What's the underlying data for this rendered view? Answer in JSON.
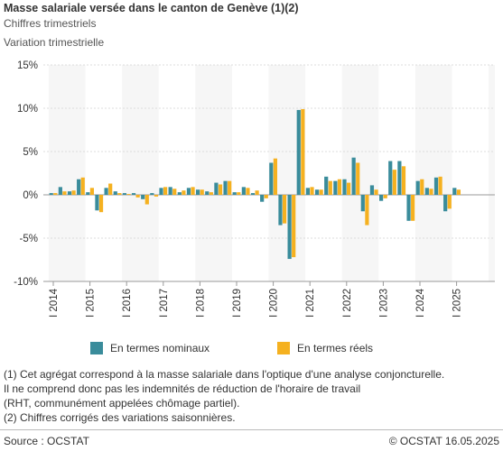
{
  "header": {
    "title": "Masse salariale versée dans le canton de Genève (1)(2)",
    "subtitle": "Chiffres trimestriels",
    "measure": "Variation trimestrielle"
  },
  "legend": [
    {
      "label": "En termes nominaux",
      "color": "#3a8c9b"
    },
    {
      "label": "En termes réels",
      "color": "#f5b120"
    }
  ],
  "notes": [
    "(1) Cet agrégat correspond à la masse salariale dans l'optique d'une analyse conjoncturelle.",
    "Il ne comprend donc pas les indemnités de réduction de l'horaire de travail",
    "(RHT, communément appelées chômage partiel).",
    "(2) Chiffres corrigés des variations saisonnières."
  ],
  "footer": {
    "source": "Source : OCSTAT",
    "copyright": "© OCSTAT 16.05.2025"
  },
  "chart_data": {
    "type": "bar",
    "y_ticks": [
      "15%",
      "10%",
      "5%",
      "0%",
      "-5%",
      "-10%"
    ],
    "ylim": [
      -10,
      15
    ],
    "y_tick_values": [
      15,
      10,
      5,
      0,
      -5,
      -10
    ],
    "year_labels": [
      "I 2014",
      "I 2015",
      "I 2016",
      "I 2017",
      "I 2018",
      "I 2019",
      "I 2020",
      "I 2021",
      "I 2022",
      "I 2023",
      "I 2024",
      "I 2025"
    ],
    "categories": [
      "I 2014",
      "II 2014",
      "III 2014",
      "IV 2014",
      "I 2015",
      "II 2015",
      "III 2015",
      "IV 2015",
      "I 2016",
      "II 2016",
      "III 2016",
      "IV 2016",
      "I 2017",
      "II 2017",
      "III 2017",
      "IV 2017",
      "I 2018",
      "II 2018",
      "III 2018",
      "IV 2018",
      "I 2019",
      "II 2019",
      "III 2019",
      "IV 2019",
      "I 2020",
      "II 2020",
      "III 2020",
      "IV 2020",
      "I 2021",
      "II 2021",
      "III 2021",
      "IV 2021",
      "I 2022",
      "II 2022",
      "III 2022",
      "IV 2022",
      "I 2023",
      "II 2023",
      "III 2023",
      "IV 2023",
      "I 2024",
      "II 2024",
      "III 2024",
      "IV 2024",
      "I 2025"
    ],
    "series": [
      {
        "name": "En termes nominaux",
        "color": "#3a8c9b",
        "values": [
          0.2,
          0.9,
          0.4,
          1.8,
          0.3,
          -1.8,
          0.8,
          0.4,
          0.2,
          0.2,
          -0.5,
          0.2,
          0.8,
          0.9,
          0.3,
          0.8,
          0.6,
          0.4,
          1.4,
          1.6,
          0.3,
          0.9,
          0.2,
          -0.8,
          3.7,
          -3.5,
          -7.4,
          9.8,
          0.8,
          0.6,
          2.1,
          1.6,
          1.8,
          4.3,
          -1.9,
          1.1,
          -0.7,
          3.9,
          3.9,
          -3.0,
          1.6,
          0.8,
          2.0,
          -1.9,
          0.8
        ]
      },
      {
        "name": "En termes réels",
        "color": "#f5b120",
        "values": [
          0.2,
          0.4,
          0.5,
          2.0,
          0.8,
          -2.0,
          1.3,
          0.2,
          0.1,
          -0.3,
          -1.1,
          -0.2,
          0.9,
          0.7,
          0.5,
          0.9,
          0.6,
          0.3,
          1.2,
          1.6,
          0.3,
          0.8,
          0.5,
          -0.4,
          4.2,
          -3.3,
          -7.2,
          9.9,
          0.9,
          0.6,
          1.6,
          1.8,
          1.4,
          3.7,
          -3.5,
          0.6,
          -0.4,
          2.9,
          3.3,
          -3.0,
          1.8,
          0.7,
          2.1,
          -1.6,
          0.6
        ]
      }
    ],
    "grid": true,
    "alternating_year_bands": true,
    "legend_position": "bottom"
  }
}
